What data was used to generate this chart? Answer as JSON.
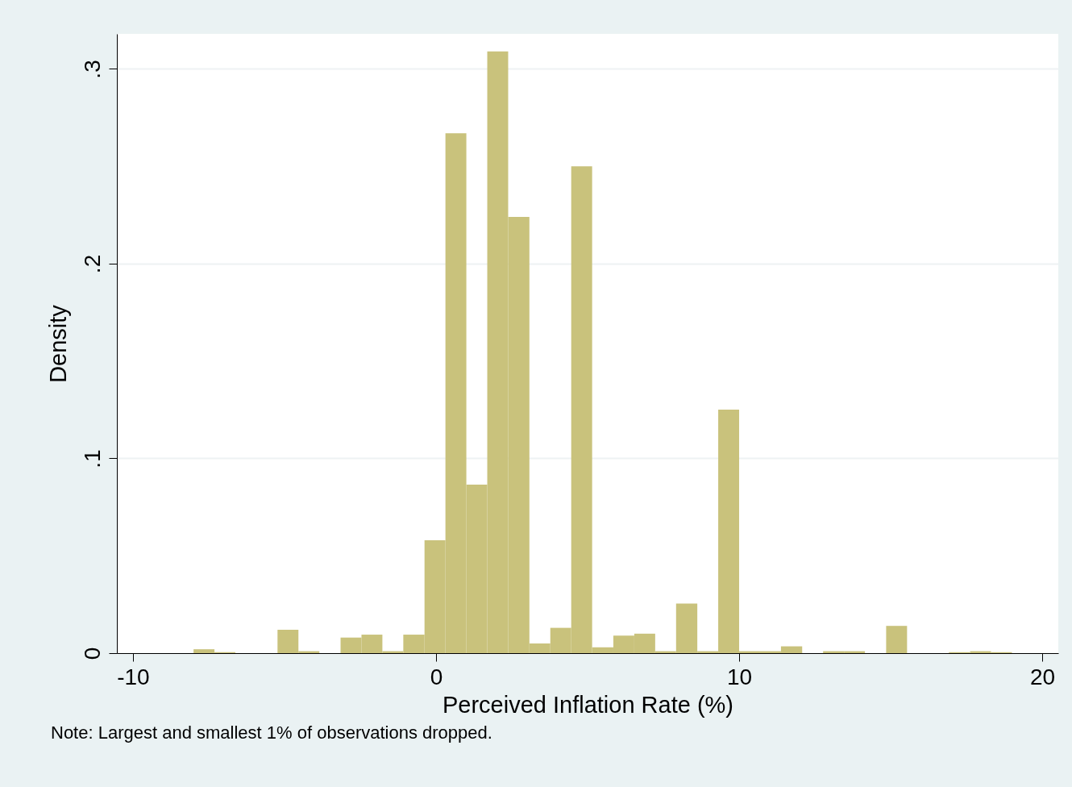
{
  "chart_data": {
    "type": "histogram",
    "xlabel": "Perceived Inflation Rate (%)",
    "ylabel": "Density",
    "bins": [
      -8,
      -7.31,
      -6.62,
      -5.92,
      -5.23,
      -4.54,
      -3.85,
      -3.15,
      -2.46,
      -1.77,
      -1.08,
      -0.38,
      0.31,
      1.0,
      1.69,
      2.38,
      3.08,
      3.77,
      4.46,
      5.15,
      5.85,
      6.54,
      7.23,
      7.92,
      8.62,
      9.31,
      10.0,
      10.69,
      11.38,
      12.08,
      12.77,
      13.46,
      14.15,
      14.85,
      15.54,
      16.23,
      16.92,
      17.62,
      18.31,
      19.0
    ],
    "values": [
      0.002,
      0.0005,
      0,
      0,
      0.012,
      0.001,
      0,
      0.008,
      0.0095,
      0.001,
      0.0095,
      0.058,
      0.267,
      0.0865,
      0.309,
      0.224,
      0.005,
      0.013,
      0.25,
      0.003,
      0.009,
      0.01,
      0.001,
      0.0255,
      0.001,
      0.125,
      0.001,
      0.001,
      0.0035,
      0,
      0.001,
      0.001,
      0,
      0.014,
      0,
      0,
      0.0005,
      0.001,
      0.0005
    ],
    "color": "#c9c27c",
    "xlim": [
      -10.53,
      20.53
    ],
    "xticks": [
      -10,
      0,
      10,
      20
    ],
    "ylim": [
      0,
      0.318
    ],
    "yticks": [
      0,
      {
        "value": 0.1,
        "label": ".1"
      },
      {
        "value": 0.2,
        "label": ".2"
      },
      {
        "value": 0.3,
        "label": ".3"
      }
    ],
    "grid": "y",
    "annotations": [
      "Note: Largest and smallest 1% of observations dropped."
    ]
  }
}
